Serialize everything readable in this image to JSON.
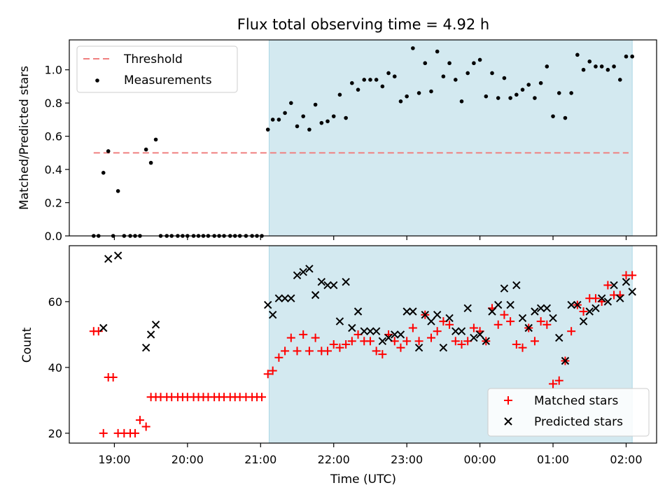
{
  "chart_data": [
    {
      "type": "scatter",
      "title": "Flux total observing time = 4.92 h",
      "ylabel": "Matched/Predicted stars",
      "xlabel": "",
      "xlim": [
        "18:23",
        "02:25"
      ],
      "ylim": [
        0,
        1.18
      ],
      "yticks": [
        "0.0",
        "0.2",
        "0.4",
        "0.6",
        "0.8",
        "1.0"
      ],
      "shaded_region": {
        "from": "21:07",
        "to": "02:05",
        "color": "#d3e9f0"
      },
      "threshold": {
        "name": "Threshold",
        "value": 0.5,
        "from": "18:43",
        "to": "02:02",
        "color": "#f08080"
      },
      "legend": {
        "placement": "top-left",
        "entries": [
          "Threshold",
          "Measurements"
        ]
      },
      "series": [
        {
          "name": "Measurements",
          "color": "#000000",
          "x": [
            "18:43",
            "18:47",
            "18:51",
            "18:55",
            "18:59",
            "19:03",
            "19:08",
            "19:13",
            "19:17",
            "19:21",
            "19:26",
            "19:30",
            "19:34",
            "19:38",
            "19:43",
            "19:47",
            "19:52",
            "19:56",
            "20:00",
            "20:05",
            "20:09",
            "20:13",
            "20:17",
            "20:22",
            "20:26",
            "20:30",
            "20:35",
            "20:39",
            "20:43",
            "20:48",
            "20:53",
            "20:57",
            "21:01",
            "21:06",
            "21:10",
            "21:15",
            "21:20",
            "21:25",
            "21:30",
            "21:35",
            "21:40",
            "21:45",
            "21:50",
            "21:55",
            "22:00",
            "22:05",
            "22:10",
            "22:15",
            "22:20",
            "22:25",
            "22:30",
            "22:35",
            "22:40",
            "22:45",
            "22:50",
            "22:55",
            "23:00",
            "23:05",
            "23:10",
            "23:15",
            "23:20",
            "23:25",
            "23:30",
            "23:35",
            "23:40",
            "23:45",
            "23:50",
            "23:55",
            "00:00",
            "00:05",
            "00:10",
            "00:15",
            "00:20",
            "00:25",
            "00:30",
            "00:35",
            "00:40",
            "00:45",
            "00:50",
            "00:55",
            "01:00",
            "01:05",
            "01:10",
            "01:15",
            "01:20",
            "01:25",
            "01:30",
            "01:35",
            "01:40",
            "01:45",
            "01:50",
            "01:55",
            "02:00",
            "02:05"
          ],
          "y": [
            0,
            0,
            0.38,
            0.51,
            0,
            0.27,
            0,
            0,
            0,
            0,
            0.52,
            0.44,
            0.58,
            0,
            0,
            0,
            0,
            0,
            0,
            0,
            0,
            0,
            0,
            0,
            0,
            0,
            0,
            0,
            0,
            0,
            0,
            0,
            0,
            0.64,
            0.7,
            0.7,
            0.74,
            0.8,
            0.66,
            0.72,
            0.64,
            0.79,
            0.68,
            0.69,
            0.72,
            0.85,
            0.71,
            0.92,
            0.88,
            0.94,
            0.94,
            0.94,
            0.9,
            0.98,
            0.96,
            0.81,
            0.84,
            1.13,
            0.86,
            1.04,
            0.87,
            1.11,
            0.96,
            1.04,
            0.94,
            0.81,
            0.98,
            1.04,
            1.06,
            0.84,
            0.98,
            0.83,
            0.95,
            0.83,
            0.85,
            0.88,
            0.91,
            0.83,
            0.92,
            1.02,
            0.72,
            0.86,
            0.71,
            0.86,
            1.09,
            1.0,
            1.05,
            1.02,
            1.02,
            1.0,
            1.02,
            0.94,
            1.08,
            1.08
          ]
        }
      ]
    },
    {
      "type": "scatter",
      "title": "",
      "ylabel": "Count",
      "xlabel": "Time (UTC)",
      "xlim": [
        "18:23",
        "02:25"
      ],
      "ylim": [
        17,
        77
      ],
      "yticks": [
        "20",
        "40",
        "60"
      ],
      "xticks": [
        "19:00",
        "20:00",
        "21:00",
        "22:00",
        "23:00",
        "00:00",
        "01:00",
        "02:00"
      ],
      "shaded_region": {
        "from": "21:07",
        "to": "02:05",
        "color": "#d3e9f0"
      },
      "legend": {
        "placement": "bottom-right",
        "entries": [
          "Matched stars",
          "Predicted stars"
        ]
      },
      "series": [
        {
          "name": "Matched stars",
          "color": "#ff0000",
          "marker": "plus",
          "x": [
            "18:43",
            "18:47",
            "18:51",
            "18:55",
            "18:59",
            "19:03",
            "19:08",
            "19:13",
            "19:17",
            "19:21",
            "19:26",
            "19:30",
            "19:34",
            "19:38",
            "19:43",
            "19:47",
            "19:52",
            "19:56",
            "20:00",
            "20:05",
            "20:09",
            "20:13",
            "20:17",
            "20:22",
            "20:26",
            "20:30",
            "20:35",
            "20:39",
            "20:43",
            "20:48",
            "20:53",
            "20:57",
            "21:01",
            "21:06",
            "21:10",
            "21:15",
            "21:20",
            "21:25",
            "21:30",
            "21:35",
            "21:40",
            "21:45",
            "21:50",
            "21:55",
            "22:00",
            "22:05",
            "22:10",
            "22:15",
            "22:20",
            "22:25",
            "22:30",
            "22:35",
            "22:40",
            "22:45",
            "22:50",
            "22:55",
            "23:00",
            "23:05",
            "23:10",
            "23:15",
            "23:20",
            "23:25",
            "23:30",
            "23:35",
            "23:40",
            "23:45",
            "23:50",
            "23:55",
            "00:00",
            "00:05",
            "00:10",
            "00:15",
            "00:20",
            "00:25",
            "00:30",
            "00:35",
            "00:40",
            "00:45",
            "00:50",
            "00:55",
            "01:00",
            "01:05",
            "01:10",
            "01:15",
            "01:20",
            "01:25",
            "01:30",
            "01:35",
            "01:40",
            "01:45",
            "01:50",
            "01:55",
            "02:00",
            "02:05"
          ],
          "y": [
            51,
            51,
            20,
            37,
            37,
            20,
            20,
            20,
            20,
            24,
            22,
            31,
            31,
            31,
            31,
            31,
            31,
            31,
            31,
            31,
            31,
            31,
            31,
            31,
            31,
            31,
            31,
            31,
            31,
            31,
            31,
            31,
            31,
            38,
            39,
            43,
            45,
            49,
            45,
            50,
            45,
            49,
            45,
            45,
            47,
            46,
            47,
            48,
            50,
            48,
            48,
            45,
            44,
            50,
            48,
            46,
            48,
            52,
            48,
            56,
            49,
            51,
            54,
            53,
            48,
            47,
            48,
            52,
            51,
            48,
            58,
            53,
            56,
            54,
            47,
            46,
            52,
            48,
            54,
            53,
            35,
            36,
            42,
            51,
            59,
            57,
            61,
            61,
            60,
            65,
            62,
            62,
            68,
            68
          ]
        },
        {
          "name": "Predicted stars",
          "color": "#000000",
          "marker": "x",
          "x": [
            "18:51",
            "18:55",
            "19:03",
            "19:26",
            "19:30",
            "19:34",
            "21:06",
            "21:10",
            "21:15",
            "21:20",
            "21:25",
            "21:30",
            "21:35",
            "21:40",
            "21:45",
            "21:50",
            "21:55",
            "22:00",
            "22:05",
            "22:10",
            "22:15",
            "22:20",
            "22:25",
            "22:30",
            "22:35",
            "22:40",
            "22:45",
            "22:50",
            "22:55",
            "23:00",
            "23:05",
            "23:10",
            "23:15",
            "23:20",
            "23:25",
            "23:30",
            "23:35",
            "23:40",
            "23:45",
            "23:50",
            "23:55",
            "00:00",
            "00:05",
            "00:10",
            "00:15",
            "00:20",
            "00:25",
            "00:30",
            "00:35",
            "00:40",
            "00:45",
            "00:50",
            "00:55",
            "01:00",
            "01:05",
            "01:10",
            "01:15",
            "01:20",
            "01:25",
            "01:30",
            "01:35",
            "01:40",
            "01:45",
            "01:50",
            "01:55",
            "02:00",
            "02:05"
          ],
          "y": [
            52,
            73,
            74,
            46,
            50,
            53,
            59,
            56,
            61,
            61,
            61,
            68,
            69,
            70,
            62,
            66,
            65,
            65,
            54,
            66,
            52,
            57,
            51,
            51,
            51,
            48,
            49,
            50,
            50,
            57,
            57,
            46,
            56,
            54,
            56,
            46,
            55,
            51,
            51,
            58,
            49,
            50,
            48,
            57,
            59,
            64,
            59,
            65,
            55,
            52,
            57,
            58,
            58,
            55,
            49,
            42,
            59,
            59,
            54,
            57,
            58,
            61,
            60,
            65,
            61,
            66,
            63
          ]
        }
      ]
    }
  ]
}
